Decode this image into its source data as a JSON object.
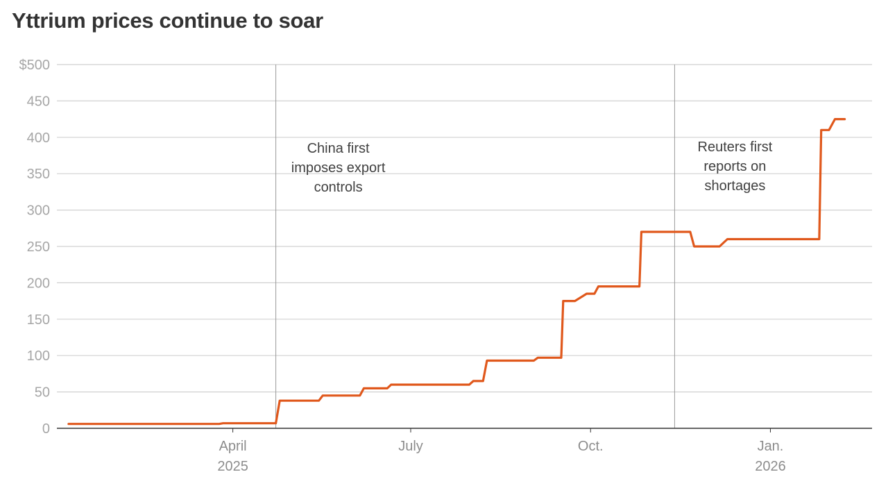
{
  "title": "Yttrium prices continue to soar",
  "chart_data": {
    "type": "line",
    "title": "Yttrium prices continue to soar",
    "xlabel": "",
    "ylabel": "",
    "ylim": [
      0,
      500
    ],
    "xlim": [
      "2025-01-01",
      "2026-02-22"
    ],
    "y_ticks": [
      {
        "value": 0,
        "label": "0"
      },
      {
        "value": 50,
        "label": "50"
      },
      {
        "value": 100,
        "label": "100"
      },
      {
        "value": 150,
        "label": "150"
      },
      {
        "value": 200,
        "label": "200"
      },
      {
        "value": 250,
        "label": "250"
      },
      {
        "value": 300,
        "label": "300"
      },
      {
        "value": 350,
        "label": "350"
      },
      {
        "value": 400,
        "label": "400"
      },
      {
        "value": 450,
        "label": "450"
      },
      {
        "value": 500,
        "label": "$500"
      }
    ],
    "x_ticks": [
      {
        "date": "2025-04-01",
        "label": "April",
        "sublabel": "2025"
      },
      {
        "date": "2025-07-01",
        "label": "July",
        "sublabel": ""
      },
      {
        "date": "2025-10-01",
        "label": "Oct.",
        "sublabel": ""
      },
      {
        "date": "2026-01-01",
        "label": "Jan.",
        "sublabel": "2026"
      }
    ],
    "grid": true,
    "series": [
      {
        "color": "#e0581c",
        "points": [
          [
            "2025-01-07",
            6
          ],
          [
            "2025-03-25",
            6
          ],
          [
            "2025-03-27",
            7
          ],
          [
            "2025-04-23",
            7
          ],
          [
            "2025-04-25",
            38
          ],
          [
            "2025-05-15",
            38
          ],
          [
            "2025-05-17",
            45
          ],
          [
            "2025-06-05",
            45
          ],
          [
            "2025-06-07",
            55
          ],
          [
            "2025-06-19",
            55
          ],
          [
            "2025-06-21",
            60
          ],
          [
            "2025-07-31",
            60
          ],
          [
            "2025-08-02",
            65
          ],
          [
            "2025-08-07",
            65
          ],
          [
            "2025-08-09",
            93
          ],
          [
            "2025-09-02",
            93
          ],
          [
            "2025-09-04",
            97
          ],
          [
            "2025-09-16",
            97
          ],
          [
            "2025-09-17",
            175
          ],
          [
            "2025-09-23",
            175
          ],
          [
            "2025-09-29",
            185
          ],
          [
            "2025-10-03",
            185
          ],
          [
            "2025-10-05",
            195
          ],
          [
            "2025-10-26",
            195
          ],
          [
            "2025-10-27",
            270
          ],
          [
            "2025-11-21",
            270
          ],
          [
            "2025-11-23",
            250
          ],
          [
            "2025-12-06",
            250
          ],
          [
            "2025-12-10",
            260
          ],
          [
            "2026-01-26",
            260
          ],
          [
            "2026-01-27",
            410
          ],
          [
            "2026-01-31",
            410
          ],
          [
            "2026-02-03",
            425
          ],
          [
            "2026-02-08",
            425
          ]
        ]
      }
    ],
    "annotations": [
      {
        "date": "2025-04-23",
        "lines": [
          "China first",
          "imposes export",
          "controls"
        ]
      },
      {
        "date": "2025-11-13",
        "lines": [
          "Reuters first",
          "reports on",
          "shortages"
        ]
      }
    ],
    "colors": {
      "line": "#e0581c",
      "grid": "#d0d0d0",
      "axis": "#333333",
      "event_line": "#999999",
      "tick_text": "#a6a6a6",
      "annotation_text": "#404040",
      "title_text": "#333333"
    }
  }
}
